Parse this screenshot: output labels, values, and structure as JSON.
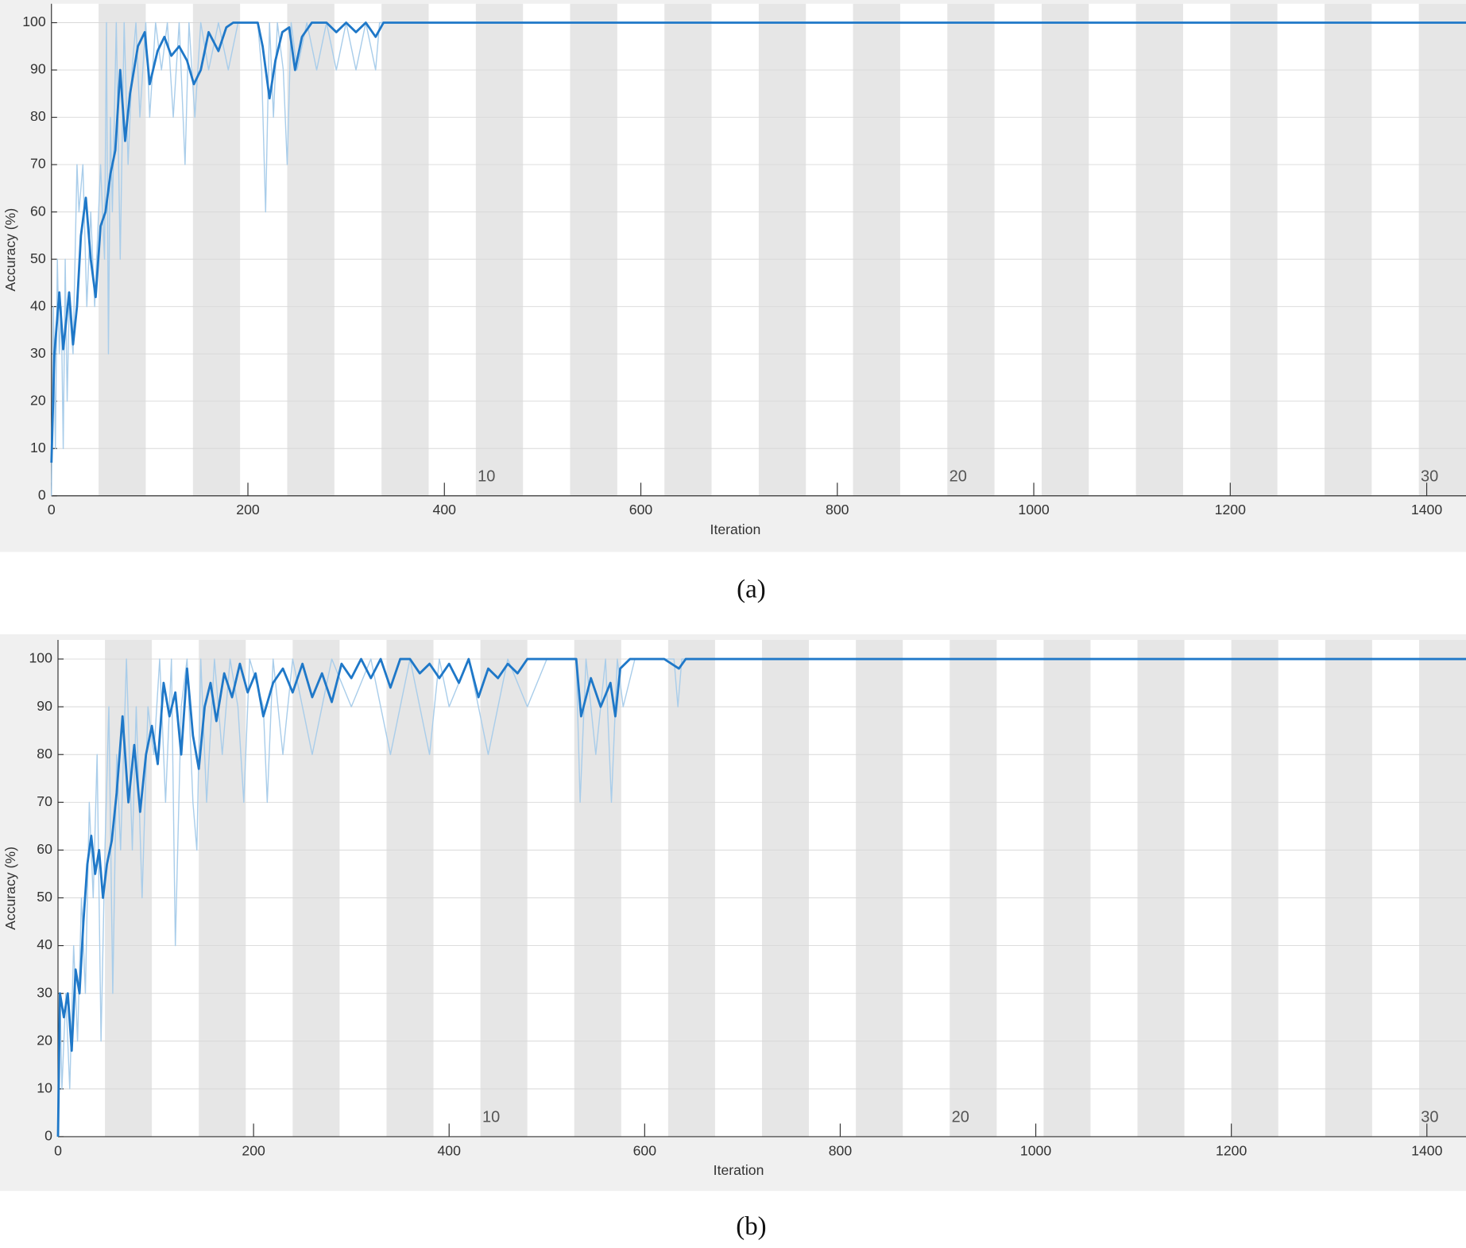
{
  "chart_data": [
    {
      "type": "line",
      "caption": "(a)",
      "x_label": "Iteration",
      "y_label": "Accuracy (%)",
      "xlim": [
        0,
        1440
      ],
      "ylim": [
        0,
        104
      ],
      "xticks": [
        0,
        200,
        400,
        600,
        800,
        1000,
        1200,
        1400
      ],
      "yticks": [
        0,
        10,
        20,
        30,
        40,
        50,
        60,
        70,
        80,
        90,
        100
      ],
      "grid": true,
      "epoch_length": 48,
      "epochs": 30,
      "epoch_labels": [
        10,
        20,
        30
      ],
      "series": [
        {
          "color": "#a9cdea",
          "x": [
            0,
            2,
            4,
            6,
            8,
            10,
            12,
            14,
            16,
            18,
            22,
            26,
            28,
            32,
            36,
            40,
            44,
            50,
            54,
            56,
            58,
            60,
            62,
            66,
            70,
            74,
            78,
            82,
            86,
            90,
            96,
            100,
            106,
            112,
            118,
            124,
            130,
            136,
            140,
            146,
            152,
            160,
            170,
            180,
            190,
            210,
            214,
            218,
            222,
            226,
            230,
            236,
            240,
            244,
            250,
            260,
            270,
            280,
            290,
            300,
            310,
            320,
            330,
            334,
            1440
          ],
          "values": [
            0,
            40,
            10,
            50,
            30,
            40,
            10,
            50,
            20,
            40,
            30,
            70,
            60,
            70,
            40,
            60,
            40,
            70,
            50,
            100,
            30,
            80,
            60,
            100,
            50,
            100,
            70,
            90,
            100,
            80,
            100,
            80,
            100,
            90,
            100,
            80,
            100,
            70,
            100,
            80,
            100,
            90,
            100,
            90,
            100,
            100,
            90,
            60,
            100,
            80,
            100,
            90,
            70,
            100,
            90,
            100,
            90,
            100,
            90,
            100,
            90,
            100,
            90,
            100,
            100
          ]
        },
        {
          "color": "#1f78c8",
          "x": [
            0,
            3,
            8,
            12,
            18,
            22,
            26,
            30,
            35,
            40,
            45,
            50,
            55,
            60,
            65,
            70,
            75,
            80,
            88,
            95,
            100,
            108,
            115,
            122,
            130,
            138,
            145,
            152,
            160,
            170,
            178,
            185,
            200,
            210,
            215,
            222,
            228,
            235,
            242,
            248,
            255,
            265,
            280,
            290,
            300,
            310,
            320,
            330,
            338,
            1440
          ],
          "values": [
            7,
            30,
            43,
            31,
            43,
            32,
            40,
            55,
            63,
            50,
            42,
            57,
            60,
            68,
            73,
            90,
            75,
            85,
            95,
            98,
            87,
            94,
            97,
            93,
            95,
            92,
            87,
            90,
            98,
            94,
            99,
            100,
            100,
            100,
            95,
            84,
            92,
            98,
            99,
            90,
            97,
            100,
            100,
            98,
            100,
            98,
            100,
            97,
            100,
            100
          ]
        }
      ]
    },
    {
      "type": "line",
      "caption": "(b)",
      "x_label": "Iteration",
      "y_label": "Accuracy (%)",
      "xlim": [
        0,
        1440
      ],
      "ylim": [
        0,
        104
      ],
      "xticks": [
        0,
        200,
        400,
        600,
        800,
        1000,
        1200,
        1400
      ],
      "yticks": [
        0,
        10,
        20,
        30,
        40,
        50,
        60,
        70,
        80,
        90,
        100
      ],
      "grid": true,
      "epoch_length": 48,
      "epochs": 30,
      "epoch_labels": [
        10,
        20,
        30
      ],
      "series": [
        {
          "color": "#a9cdea",
          "x": [
            0,
            2,
            4,
            8,
            12,
            16,
            20,
            24,
            28,
            32,
            36,
            40,
            44,
            48,
            52,
            56,
            60,
            64,
            70,
            76,
            80,
            86,
            92,
            98,
            104,
            110,
            116,
            120,
            126,
            132,
            138,
            142,
            146,
            152,
            160,
            168,
            176,
            184,
            190,
            196,
            210,
            214,
            220,
            230,
            240,
            260,
            280,
            300,
            320,
            340,
            360,
            370,
            380,
            390,
            400,
            420,
            440,
            460,
            480,
            500,
            530,
            534,
            540,
            550,
            560,
            566,
            572,
            578,
            590,
            630,
            634,
            638,
            1440
          ],
          "values": [
            0,
            30,
            10,
            30,
            10,
            40,
            20,
            50,
            30,
            70,
            50,
            80,
            20,
            60,
            90,
            30,
            80,
            60,
            100,
            60,
            90,
            50,
            90,
            80,
            100,
            70,
            100,
            40,
            90,
            100,
            70,
            60,
            100,
            70,
            100,
            80,
            100,
            90,
            70,
            100,
            90,
            70,
            100,
            80,
            100,
            80,
            100,
            90,
            100,
            80,
            100,
            90,
            80,
            100,
            90,
            100,
            80,
            100,
            90,
            100,
            100,
            70,
            100,
            80,
            100,
            70,
            100,
            90,
            100,
            100,
            90,
            100,
            100
          ]
        },
        {
          "color": "#1f78c8",
          "x": [
            0,
            2,
            6,
            10,
            14,
            18,
            22,
            26,
            30,
            34,
            38,
            42,
            46,
            50,
            55,
            60,
            66,
            72,
            78,
            84,
            90,
            96,
            102,
            108,
            114,
            120,
            126,
            132,
            138,
            144,
            150,
            156,
            162,
            170,
            178,
            186,
            194,
            202,
            210,
            220,
            230,
            240,
            250,
            260,
            270,
            280,
            290,
            300,
            310,
            320,
            330,
            340,
            350,
            360,
            370,
            380,
            390,
            400,
            410,
            420,
            430,
            440,
            450,
            460,
            470,
            480,
            520,
            530,
            535,
            545,
            555,
            565,
            570,
            575,
            585,
            620,
            635,
            642,
            1440
          ],
          "values": [
            0,
            30,
            25,
            30,
            18,
            35,
            30,
            45,
            57,
            63,
            55,
            60,
            50,
            57,
            62,
            72,
            88,
            70,
            82,
            68,
            80,
            86,
            78,
            95,
            88,
            93,
            80,
            98,
            84,
            77,
            90,
            95,
            87,
            97,
            92,
            99,
            93,
            97,
            88,
            95,
            98,
            93,
            99,
            92,
            97,
            91,
            99,
            96,
            100,
            96,
            100,
            94,
            100,
            100,
            97,
            99,
            96,
            99,
            95,
            100,
            92,
            98,
            96,
            99,
            97,
            100,
            100,
            100,
            88,
            96,
            90,
            95,
            88,
            98,
            100,
            100,
            98,
            100,
            100
          ]
        }
      ]
    }
  ]
}
